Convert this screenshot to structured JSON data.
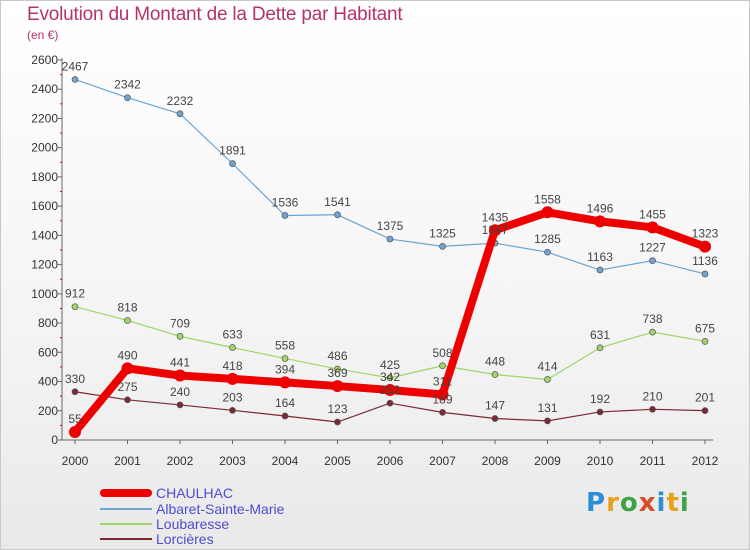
{
  "title": "Evolution du Montant de la Dette par Habitant",
  "subtitle": "(en €)",
  "chart_data": {
    "type": "line",
    "x": [
      "2000",
      "2001",
      "2002",
      "2003",
      "2004",
      "2005",
      "2006",
      "2007",
      "2008",
      "2009",
      "2010",
      "2011",
      "2012"
    ],
    "ylim": [
      0,
      2600
    ],
    "yticks": [
      0,
      200,
      400,
      600,
      800,
      1000,
      1200,
      1400,
      1600,
      1800,
      2000,
      2200,
      2400,
      2600
    ],
    "grid": false,
    "legend_position": "bottom-left",
    "series": [
      {
        "name": "Albaret-Sainte-Marie",
        "color": "#6fa3d0",
        "width": 1.2,
        "values": [
          2467,
          2342,
          2232,
          1891,
          1536,
          1541,
          1375,
          1325,
          1347,
          1285,
          1163,
          1227,
          1136
        ]
      },
      {
        "name": "Loubaresse",
        "color": "#9ed66a",
        "width": 1.2,
        "values": [
          912,
          818,
          709,
          633,
          558,
          486,
          425,
          508,
          448,
          414,
          631,
          738,
          675
        ]
      },
      {
        "name": "Lorcières",
        "color": "#7a2a36",
        "width": 1.2,
        "values": [
          330,
          275,
          240,
          203,
          164,
          123,
          252,
          189,
          147,
          131,
          192,
          210,
          201
        ]
      },
      {
        "name": "CHAULHAC",
        "color": "#ee0000",
        "width": 8,
        "values": [
          55,
          490,
          441,
          418,
          394,
          369,
          342,
          311,
          1435,
          1558,
          1496,
          1455,
          1323
        ]
      }
    ]
  },
  "legend": {
    "items": [
      {
        "label": "CHAULHAC",
        "color": "#ee0000",
        "thickness": 8
      },
      {
        "label": "Albaret-Sainte-Marie",
        "color": "#6fa3d0",
        "thickness": 2
      },
      {
        "label": "Loubaresse",
        "color": "#9ed66a",
        "thickness": 2
      },
      {
        "label": "Lorcières",
        "color": "#7a2a36",
        "thickness": 2
      }
    ]
  },
  "logo": {
    "letters": [
      "P",
      "r",
      "o",
      "x",
      "i",
      "t",
      "i"
    ],
    "colors": [
      "#2c8fd6",
      "#e8a21a",
      "#3fa24a",
      "#d94c2a",
      "#2c8fd6",
      "#e8a21a",
      "#3fa24a"
    ]
  }
}
